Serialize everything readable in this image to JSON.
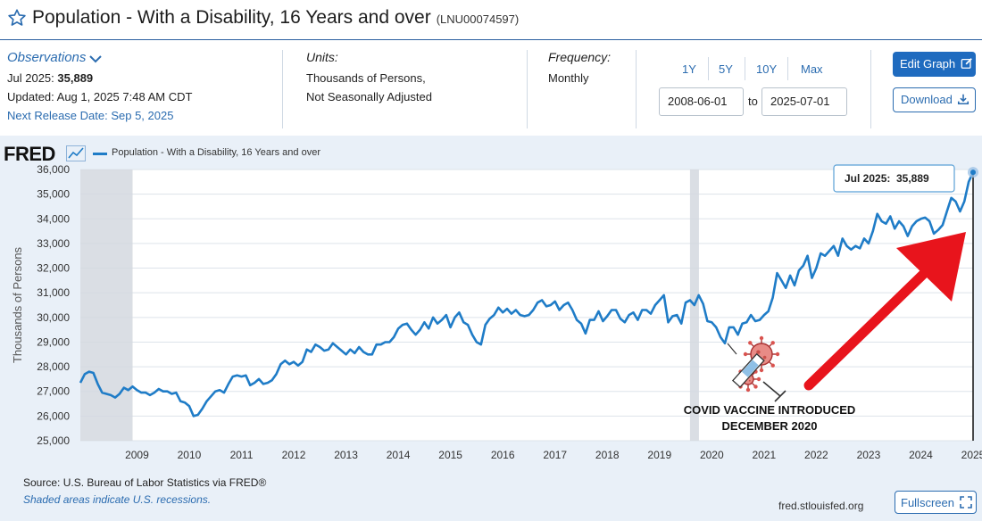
{
  "header": {
    "title": "Population - With a Disability, 16 Years and over",
    "series_id": "(LNU00074597)"
  },
  "observations": {
    "label": "Observations",
    "period": "Jul 2025:",
    "value": "35,889",
    "updated": "Updated: Aug 1, 2025 7:48 AM CDT",
    "next_release": "Next Release Date: Sep 5, 2025"
  },
  "units": {
    "label": "Units:",
    "line1": "Thousands of Persons,",
    "line2": "Not Seasonally Adjusted"
  },
  "frequency": {
    "label": "Frequency:",
    "value": "Monthly"
  },
  "range": {
    "buttons": [
      "1Y",
      "5Y",
      "10Y",
      "Max"
    ],
    "start": "2008-06-01",
    "to": "to",
    "end": "2025-07-01"
  },
  "actions": {
    "edit": "Edit Graph",
    "download": "Download"
  },
  "chart_header": {
    "logo": "FRED",
    "legend": "Population - With a Disability, 16 Years and over"
  },
  "footer": {
    "source": "Source: U.S. Bureau of Labor Statistics via FRED®",
    "shaded": "Shaded areas indicate U.S. recessions.",
    "site": "fred.stlouisfed.org",
    "fullscreen": "Fullscreen"
  },
  "colors": {
    "series": "#1f7cc7",
    "recession": "#d3d8df",
    "arrow": "#e8141c",
    "accent": "#1f6bbf"
  },
  "chart_data": {
    "type": "line",
    "ylabel": "Thousands of Persons",
    "ylim": [
      25000,
      36000
    ],
    "yticks": [
      25000,
      26000,
      27000,
      28000,
      29000,
      30000,
      31000,
      32000,
      33000,
      34000,
      35000,
      36000
    ],
    "ytick_labels": [
      "25,000",
      "26,000",
      "27,000",
      "28,000",
      "29,000",
      "30,000",
      "31,000",
      "32,000",
      "33,000",
      "34,000",
      "35,000",
      "36,000"
    ],
    "xlim": [
      "2008-06",
      "2025-07"
    ],
    "xtick_labels": [
      "2009",
      "2010",
      "2011",
      "2012",
      "2013",
      "2014",
      "2015",
      "2016",
      "2017",
      "2018",
      "2019",
      "2020",
      "2021",
      "2022",
      "2023",
      "2024",
      "2025"
    ],
    "grid": true,
    "recessions": [
      [
        "2008-06",
        "2009-06"
      ],
      [
        "2020-02",
        "2020-04"
      ]
    ],
    "tooltip": {
      "label": "Jul 2025:",
      "value": "35,889"
    },
    "annotation": "COVID VACCINE INTRODUCED DECEMBER 2020",
    "series": [
      {
        "name": "Population - With a Disability, 16 Years and over",
        "points": [
          [
            "2008-06",
            27350
          ],
          [
            "2008-07",
            27700
          ],
          [
            "2008-08",
            27800
          ],
          [
            "2008-09",
            27750
          ],
          [
            "2008-10",
            27300
          ],
          [
            "2008-11",
            26950
          ],
          [
            "2008-12",
            26900
          ],
          [
            "2009-01",
            26850
          ],
          [
            "2009-02",
            26750
          ],
          [
            "2009-03",
            26900
          ],
          [
            "2009-04",
            27150
          ],
          [
            "2009-05",
            27050
          ],
          [
            "2009-06",
            27200
          ],
          [
            "2009-07",
            27050
          ],
          [
            "2009-08",
            26950
          ],
          [
            "2009-09",
            26950
          ],
          [
            "2009-10",
            26850
          ],
          [
            "2009-11",
            26950
          ],
          [
            "2009-12",
            27100
          ],
          [
            "2010-01",
            27000
          ],
          [
            "2010-02",
            27000
          ],
          [
            "2010-03",
            26900
          ],
          [
            "2010-04",
            26950
          ],
          [
            "2010-05",
            26600
          ],
          [
            "2010-06",
            26550
          ],
          [
            "2010-07",
            26400
          ],
          [
            "2010-08",
            26000
          ],
          [
            "2010-09",
            26050
          ],
          [
            "2010-10",
            26300
          ],
          [
            "2010-11",
            26600
          ],
          [
            "2010-12",
            26800
          ],
          [
            "2011-01",
            27000
          ],
          [
            "2011-02",
            27050
          ],
          [
            "2011-03",
            26950
          ],
          [
            "2011-04",
            27300
          ],
          [
            "2011-05",
            27600
          ],
          [
            "2011-06",
            27650
          ],
          [
            "2011-07",
            27600
          ],
          [
            "2011-08",
            27650
          ],
          [
            "2011-09",
            27250
          ],
          [
            "2011-10",
            27350
          ],
          [
            "2011-11",
            27500
          ],
          [
            "2011-12",
            27300
          ],
          [
            "2012-01",
            27350
          ],
          [
            "2012-02",
            27450
          ],
          [
            "2012-03",
            27700
          ],
          [
            "2012-04",
            28100
          ],
          [
            "2012-05",
            28250
          ],
          [
            "2012-06",
            28100
          ],
          [
            "2012-07",
            28200
          ],
          [
            "2012-08",
            28050
          ],
          [
            "2012-09",
            28200
          ],
          [
            "2012-10",
            28700
          ],
          [
            "2012-11",
            28600
          ],
          [
            "2012-12",
            28900
          ],
          [
            "2013-01",
            28800
          ],
          [
            "2013-02",
            28650
          ],
          [
            "2013-03",
            28700
          ],
          [
            "2013-04",
            28950
          ],
          [
            "2013-05",
            28800
          ],
          [
            "2013-06",
            28650
          ],
          [
            "2013-07",
            28500
          ],
          [
            "2013-08",
            28700
          ],
          [
            "2013-09",
            28550
          ],
          [
            "2013-10",
            28800
          ],
          [
            "2013-11",
            28600
          ],
          [
            "2013-12",
            28500
          ],
          [
            "2014-01",
            28500
          ],
          [
            "2014-02",
            28900
          ],
          [
            "2014-03",
            28900
          ],
          [
            "2014-04",
            29000
          ],
          [
            "2014-05",
            29000
          ],
          [
            "2014-06",
            29200
          ],
          [
            "2014-07",
            29550
          ],
          [
            "2014-08",
            29700
          ],
          [
            "2014-09",
            29750
          ],
          [
            "2014-10",
            29500
          ],
          [
            "2014-11",
            29300
          ],
          [
            "2014-12",
            29500
          ],
          [
            "2015-01",
            29800
          ],
          [
            "2015-02",
            29550
          ],
          [
            "2015-03",
            30000
          ],
          [
            "2015-04",
            29750
          ],
          [
            "2015-05",
            29900
          ],
          [
            "2015-06",
            30100
          ],
          [
            "2015-07",
            29600
          ],
          [
            "2015-08",
            30000
          ],
          [
            "2015-09",
            30200
          ],
          [
            "2015-10",
            29800
          ],
          [
            "2015-11",
            29700
          ],
          [
            "2015-12",
            29300
          ],
          [
            "2016-01",
            29000
          ],
          [
            "2016-02",
            28900
          ],
          [
            "2016-03",
            29700
          ],
          [
            "2016-04",
            29950
          ],
          [
            "2016-05",
            30100
          ],
          [
            "2016-06",
            30400
          ],
          [
            "2016-07",
            30200
          ],
          [
            "2016-08",
            30350
          ],
          [
            "2016-09",
            30150
          ],
          [
            "2016-10",
            30300
          ],
          [
            "2016-11",
            30100
          ],
          [
            "2016-12",
            30050
          ],
          [
            "2017-01",
            30100
          ],
          [
            "2017-02",
            30300
          ],
          [
            "2017-03",
            30600
          ],
          [
            "2017-04",
            30700
          ],
          [
            "2017-05",
            30450
          ],
          [
            "2017-06",
            30500
          ],
          [
            "2017-07",
            30650
          ],
          [
            "2017-08",
            30300
          ],
          [
            "2017-09",
            30500
          ],
          [
            "2017-10",
            30600
          ],
          [
            "2017-11",
            30300
          ],
          [
            "2017-12",
            29900
          ],
          [
            "2018-01",
            29750
          ],
          [
            "2018-02",
            29350
          ],
          [
            "2018-03",
            29900
          ],
          [
            "2018-04",
            29900
          ],
          [
            "2018-05",
            30250
          ],
          [
            "2018-06",
            29850
          ],
          [
            "2018-07",
            30050
          ],
          [
            "2018-08",
            30300
          ],
          [
            "2018-09",
            30300
          ],
          [
            "2018-10",
            29950
          ],
          [
            "2018-11",
            29800
          ],
          [
            "2018-12",
            30100
          ],
          [
            "2019-01",
            30200
          ],
          [
            "2019-02",
            29900
          ],
          [
            "2019-03",
            30300
          ],
          [
            "2019-04",
            30300
          ],
          [
            "2019-05",
            30150
          ],
          [
            "2019-06",
            30500
          ],
          [
            "2019-07",
            30700
          ],
          [
            "2019-08",
            30900
          ],
          [
            "2019-09",
            29800
          ],
          [
            "2019-10",
            30050
          ],
          [
            "2019-11",
            30100
          ],
          [
            "2019-12",
            29750
          ],
          [
            "2020-01",
            30600
          ],
          [
            "2020-02",
            30700
          ],
          [
            "2020-03",
            30500
          ],
          [
            "2020-04",
            30900
          ],
          [
            "2020-05",
            30550
          ],
          [
            "2020-06",
            29850
          ],
          [
            "2020-07",
            29800
          ],
          [
            "2020-08",
            29600
          ],
          [
            "2020-09",
            29200
          ],
          [
            "2020-10",
            28950
          ],
          [
            "2020-11",
            29600
          ],
          [
            "2020-12",
            29600
          ],
          [
            "2021-01",
            29300
          ],
          [
            "2021-02",
            29750
          ],
          [
            "2021-03",
            29800
          ],
          [
            "2021-04",
            30100
          ],
          [
            "2021-05",
            29850
          ],
          [
            "2021-06",
            29900
          ],
          [
            "2021-07",
            30100
          ],
          [
            "2021-08",
            30250
          ],
          [
            "2021-09",
            30800
          ],
          [
            "2021-10",
            31800
          ],
          [
            "2021-11",
            31500
          ],
          [
            "2021-12",
            31200
          ],
          [
            "2022-01",
            31700
          ],
          [
            "2022-02",
            31300
          ],
          [
            "2022-03",
            31900
          ],
          [
            "2022-04",
            32100
          ],
          [
            "2022-05",
            32500
          ],
          [
            "2022-06",
            31600
          ],
          [
            "2022-07",
            32000
          ],
          [
            "2022-08",
            32600
          ],
          [
            "2022-09",
            32500
          ],
          [
            "2022-10",
            32700
          ],
          [
            "2022-11",
            32900
          ],
          [
            "2022-12",
            32500
          ],
          [
            "2023-01",
            33200
          ],
          [
            "2023-02",
            32900
          ],
          [
            "2023-03",
            32750
          ],
          [
            "2023-04",
            32900
          ],
          [
            "2023-05",
            32800
          ],
          [
            "2023-06",
            33200
          ],
          [
            "2023-07",
            33000
          ],
          [
            "2023-08",
            33500
          ],
          [
            "2023-09",
            34200
          ],
          [
            "2023-10",
            33900
          ],
          [
            "2023-11",
            33800
          ],
          [
            "2023-12",
            34100
          ],
          [
            "2024-01",
            33600
          ],
          [
            "2024-02",
            33900
          ],
          [
            "2024-03",
            33700
          ],
          [
            "2024-04",
            33300
          ],
          [
            "2024-05",
            33700
          ],
          [
            "2024-06",
            33900
          ],
          [
            "2024-07",
            34000
          ],
          [
            "2024-08",
            34050
          ],
          [
            "2024-09",
            33900
          ],
          [
            "2024-10",
            33400
          ],
          [
            "2024-11",
            33550
          ],
          [
            "2024-12",
            33750
          ],
          [
            "2025-01",
            34300
          ],
          [
            "2025-02",
            34850
          ],
          [
            "2025-03",
            34700
          ],
          [
            "2025-04",
            34300
          ],
          [
            "2025-05",
            34700
          ],
          [
            "2025-06",
            35500
          ],
          [
            "2025-07",
            35889
          ]
        ]
      }
    ]
  }
}
